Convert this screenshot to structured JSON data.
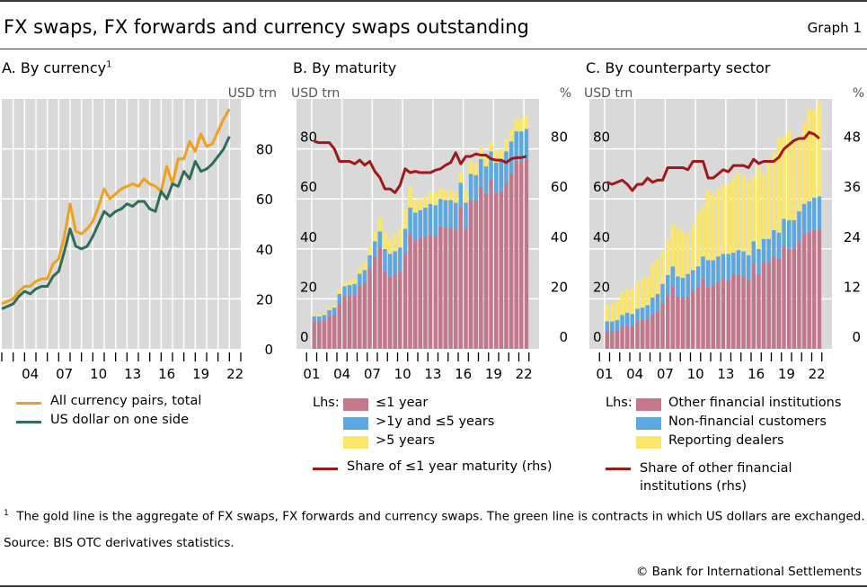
{
  "header": {
    "title": "FX swaps, FX forwards and currency swaps outstanding",
    "graph_label": "Graph 1"
  },
  "footnote": {
    "marker": "1",
    "text": "The gold line is the aggregate of FX swaps, FX forwards and currency swaps. The green line is contracts in which US dollars are exchanged."
  },
  "source": "Source: BIS OTC derivatives statistics.",
  "copyright": "© Bank for International Settlements",
  "colors": {
    "gold": "#f0a11c",
    "green": "#2e6e58",
    "pink": "#c2788a",
    "blue": "#5ca8e0",
    "yellow": "#fbe66a",
    "red": "#a01818",
    "panel_bg": "#d9d9d9"
  },
  "chart_data": [
    {
      "type": "line",
      "title": "A. By currency",
      "title_sup": "1",
      "ylabel": "USD trn",
      "ylim": [
        0,
        100
      ],
      "yticks": [
        0,
        20,
        40,
        60,
        80
      ],
      "xlim": [
        2002,
        2023
      ],
      "xtick_labels": [
        "04",
        "07",
        "10",
        "13",
        "16",
        "19",
        "22"
      ],
      "x": [
        2002.0,
        2002.5,
        2003.0,
        2003.5,
        2004.0,
        2004.5,
        2005.0,
        2005.5,
        2006.0,
        2006.5,
        2007.0,
        2007.5,
        2008.0,
        2008.5,
        2009.0,
        2009.5,
        2010.0,
        2010.5,
        2011.0,
        2011.5,
        2012.0,
        2012.5,
        2013.0,
        2013.5,
        2014.0,
        2014.5,
        2015.0,
        2015.5,
        2016.0,
        2016.5,
        2017.0,
        2017.5,
        2018.0,
        2018.5,
        2019.0,
        2019.5,
        2020.0,
        2020.5,
        2021.0,
        2021.5,
        2022.0
      ],
      "series": [
        {
          "name": "All currency pairs, total",
          "color": "#f0a11c",
          "values": [
            18,
            19,
            20,
            23,
            25,
            25,
            27,
            28,
            28,
            34,
            36,
            45,
            58,
            47,
            46,
            48,
            51,
            57,
            64,
            60,
            62,
            64,
            65,
            66,
            65,
            68,
            66,
            65,
            63,
            73,
            66,
            76,
            76,
            83,
            79,
            86,
            81,
            82,
            87,
            92,
            96
          ]
        },
        {
          "name": "US dollar on one side",
          "color": "#2e6e58",
          "values": [
            16,
            17,
            18,
            21,
            23,
            22,
            24,
            25,
            25,
            29,
            31,
            39,
            48,
            41,
            40,
            41,
            45,
            50,
            55,
            53,
            55,
            56,
            58,
            57,
            59,
            59,
            56,
            55,
            63,
            60,
            66,
            65,
            71,
            68,
            75,
            71,
            72,
            74,
            77,
            80,
            85
          ]
        }
      ],
      "legend_position": "bottom"
    },
    {
      "type": "bar",
      "stacked": true,
      "title": "B. By maturity",
      "ylabel": "USD trn",
      "ylabel_right": "%",
      "ylim": [
        0,
        100
      ],
      "ylim_right": [
        0,
        100
      ],
      "yticks": [
        0,
        20,
        40,
        60,
        80
      ],
      "yticks_right": [
        0,
        20,
        40,
        60,
        80
      ],
      "xtick_labels": [
        "01",
        "04",
        "07",
        "10",
        "13",
        "16",
        "19",
        "22"
      ],
      "x": [
        2001.0,
        2001.5,
        2002.0,
        2002.5,
        2003.0,
        2003.5,
        2004.0,
        2004.5,
        2005.0,
        2005.5,
        2006.0,
        2006.5,
        2007.0,
        2007.5,
        2008.0,
        2008.5,
        2009.0,
        2009.5,
        2010.0,
        2010.5,
        2011.0,
        2011.5,
        2012.0,
        2012.5,
        2013.0,
        2013.5,
        2014.0,
        2014.5,
        2015.0,
        2015.5,
        2016.0,
        2016.5,
        2017.0,
        2017.5,
        2018.0,
        2018.5,
        2019.0,
        2019.5,
        2020.0,
        2020.5,
        2021.0,
        2021.5,
        2022.0
      ],
      "legend_prefix": "Lhs:",
      "series": [
        {
          "name": "≤1 year",
          "color": "#c2788a",
          "values": [
            11,
            11,
            11.5,
            13,
            13.5,
            18,
            21,
            21.5,
            21.5,
            25,
            26.5,
            32,
            37,
            40.5,
            31,
            29,
            30,
            31,
            38,
            46,
            43.5,
            44.5,
            45,
            46,
            45,
            49,
            48.5,
            48.5,
            47.5,
            57,
            48,
            59.5,
            59.5,
            65,
            62,
            68,
            62.5,
            63,
            66,
            70,
            75,
            75,
            76
          ]
        },
        {
          "name": ">1y and ≤5 years",
          "color": "#5ca8e0",
          "values": [
            2,
            2,
            2,
            2.5,
            3,
            4,
            4,
            4,
            4.5,
            5,
            5,
            5.5,
            6,
            6.5,
            9,
            9,
            9,
            9.5,
            10,
            10.5,
            11,
            11,
            11.5,
            12,
            12.5,
            11,
            11,
            11,
            11,
            9.5,
            10.5,
            10.5,
            10,
            11,
            11,
            11,
            12,
            12,
            13,
            13,
            12,
            12,
            12
          ]
        },
        {
          "name": ">5 years",
          "color": "#fbe66a",
          "values": [
            0.8,
            1,
            1,
            1,
            1,
            2,
            2,
            2,
            2,
            2.5,
            3,
            3.5,
            4,
            5.5,
            7,
            6,
            7,
            8,
            8,
            8.5,
            5,
            4.5,
            4.5,
            5,
            5,
            4,
            4,
            4,
            4,
            4,
            5,
            5,
            5,
            5,
            4,
            4,
            5,
            5,
            5,
            5,
            5,
            5,
            6
          ]
        },
        {
          "name": "Share of ≤1 year maturity (rhs)",
          "type": "line",
          "color": "#a01818",
          "values": [
            83,
            82.5,
            82.5,
            82.5,
            80,
            75,
            75,
            75,
            74,
            75.5,
            73.5,
            75,
            71,
            68.5,
            64,
            64,
            62.5,
            65.5,
            72,
            70.5,
            71,
            70.5,
            70.5,
            70.5,
            71.5,
            72,
            73.5,
            74.5,
            78.5,
            74,
            77,
            77,
            78,
            77.5,
            77.5,
            76,
            75.5,
            75.5,
            74.5,
            76,
            76.5,
            76.5,
            77
          ]
        }
      ],
      "legend_position": "bottom"
    },
    {
      "type": "bar",
      "stacked": true,
      "title": "C. By counterparty sector",
      "ylabel": "USD trn",
      "ylabel_right": "%",
      "ylim": [
        0,
        100
      ],
      "ylim_right": [
        0,
        60
      ],
      "yticks": [
        0,
        20,
        40,
        60,
        80
      ],
      "yticks_right": [
        0,
        12,
        24,
        36,
        48
      ],
      "xtick_labels": [
        "01",
        "04",
        "07",
        "10",
        "13",
        "16",
        "19",
        "22"
      ],
      "x": [
        2001.0,
        2001.5,
        2002.0,
        2002.5,
        2003.0,
        2003.5,
        2004.0,
        2004.5,
        2005.0,
        2005.5,
        2006.0,
        2006.5,
        2007.0,
        2007.5,
        2008.0,
        2008.5,
        2009.0,
        2009.5,
        2010.0,
        2010.5,
        2011.0,
        2011.5,
        2012.0,
        2012.5,
        2013.0,
        2013.5,
        2014.0,
        2014.5,
        2015.0,
        2015.5,
        2016.0,
        2016.5,
        2017.0,
        2017.5,
        2018.0,
        2018.5,
        2019.0,
        2019.5,
        2020.0,
        2020.5,
        2021.0,
        2021.5,
        2022.0
      ],
      "legend_prefix": "Lhs:",
      "series": [
        {
          "name": "Other financial institutions",
          "color": "#c2788a",
          "values": [
            7,
            7,
            7.5,
            9,
            9.5,
            9,
            11,
            11.5,
            12,
            14,
            15,
            18,
            21.5,
            25,
            21,
            20.5,
            21,
            23,
            25,
            28.5,
            24.5,
            25.5,
            27,
            28,
            27.5,
            30,
            29.5,
            29,
            27.5,
            34,
            30,
            34.5,
            34.5,
            37,
            36,
            41,
            40,
            40.5,
            43,
            46,
            47,
            47.5,
            48
          ]
        },
        {
          "name": "Non-financial customers",
          "color": "#5ca8e0",
          "values": [
            4,
            4,
            4,
            4.5,
            5,
            5,
            5,
            5,
            5.5,
            6.5,
            7,
            8,
            8,
            8,
            8,
            8,
            9,
            8.5,
            8,
            8.5,
            11,
            10,
            10,
            10,
            10.5,
            8.5,
            10,
            10,
            10,
            9,
            10,
            9.5,
            9.5,
            10.5,
            10.5,
            11,
            11.5,
            11,
            12,
            12,
            12,
            13,
            13
          ]
        },
        {
          "name": "Reporting dealers",
          "color": "#fbe66a",
          "values": [
            6.5,
            7,
            7.5,
            9,
            9.5,
            10,
            11,
            11.5,
            11.5,
            13.5,
            14,
            13,
            14,
            17,
            19,
            18.5,
            16,
            18,
            21.5,
            20,
            28,
            26.5,
            27,
            27.5,
            28,
            30,
            31,
            30,
            29.5,
            26,
            33,
            26,
            31.5,
            31,
            38,
            33,
            36,
            32,
            30,
            32,
            37,
            35,
            38
          ]
        },
        {
          "name": "Share of other financial institutions (rhs)",
          "type": "line",
          "color": "#a01818",
          "values": [
            40,
            39.5,
            40,
            40.5,
            39.5,
            38,
            39.5,
            39.5,
            41,
            40,
            40.5,
            40.5,
            43.5,
            43.5,
            43.5,
            43.5,
            43,
            45,
            45,
            45,
            41,
            41,
            42,
            43,
            42.5,
            44,
            44,
            44,
            43.5,
            45.5,
            44.5,
            45,
            45,
            45,
            46,
            48,
            49,
            50,
            50.5,
            50.5,
            52,
            51.5,
            50.5
          ]
        }
      ],
      "legend_position": "bottom"
    }
  ]
}
